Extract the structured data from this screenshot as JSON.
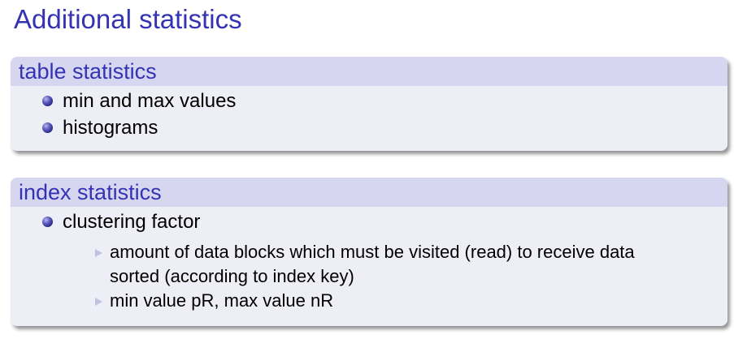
{
  "title": "Additional statistics",
  "blocks": [
    {
      "heading": "table statistics",
      "items": [
        "min and max values",
        "histograms"
      ]
    },
    {
      "heading": "index statistics",
      "items": [
        "clustering factor"
      ],
      "subitems": [
        {
          "line1": "amount of data blocks which must be visited (read) to receive data",
          "line2": "sorted (according to index key)"
        },
        {
          "line1": "min value pR, max value nR"
        }
      ]
    }
  ],
  "colors": {
    "title": "#3333b3",
    "header_bg": "#d6d6f0",
    "body_bg": "#eeeef6",
    "bullet": "#3d3d9e",
    "sub_bullet": "#c2c2de"
  },
  "icons": {
    "bullet": "ball-bullet-icon",
    "sub_bullet": "triangle-bullet-icon"
  }
}
